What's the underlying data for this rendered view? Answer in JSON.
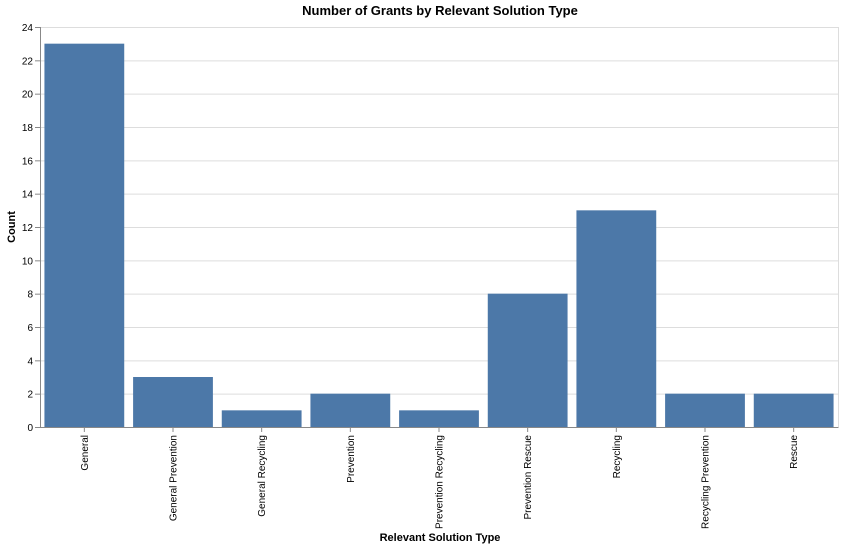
{
  "chart_data": {
    "type": "bar",
    "title": "Number of Grants by Relevant Solution Type",
    "xlabel": "Relevant Solution Type",
    "ylabel": "Count",
    "categories": [
      "General",
      "General Prevention",
      "General Recycling",
      "Prevention",
      "Prevention Recycling",
      "Prevention Rescue",
      "Recycling",
      "Recycling Prevention",
      "Rescue"
    ],
    "values": [
      23,
      3,
      1,
      2,
      1,
      8,
      13,
      2,
      2
    ],
    "ylim": [
      0,
      24
    ],
    "yticks": [
      0,
      2,
      4,
      6,
      8,
      10,
      12,
      14,
      16,
      18,
      20,
      22,
      24
    ],
    "grid": true,
    "bar_color": "#4c78a8"
  }
}
